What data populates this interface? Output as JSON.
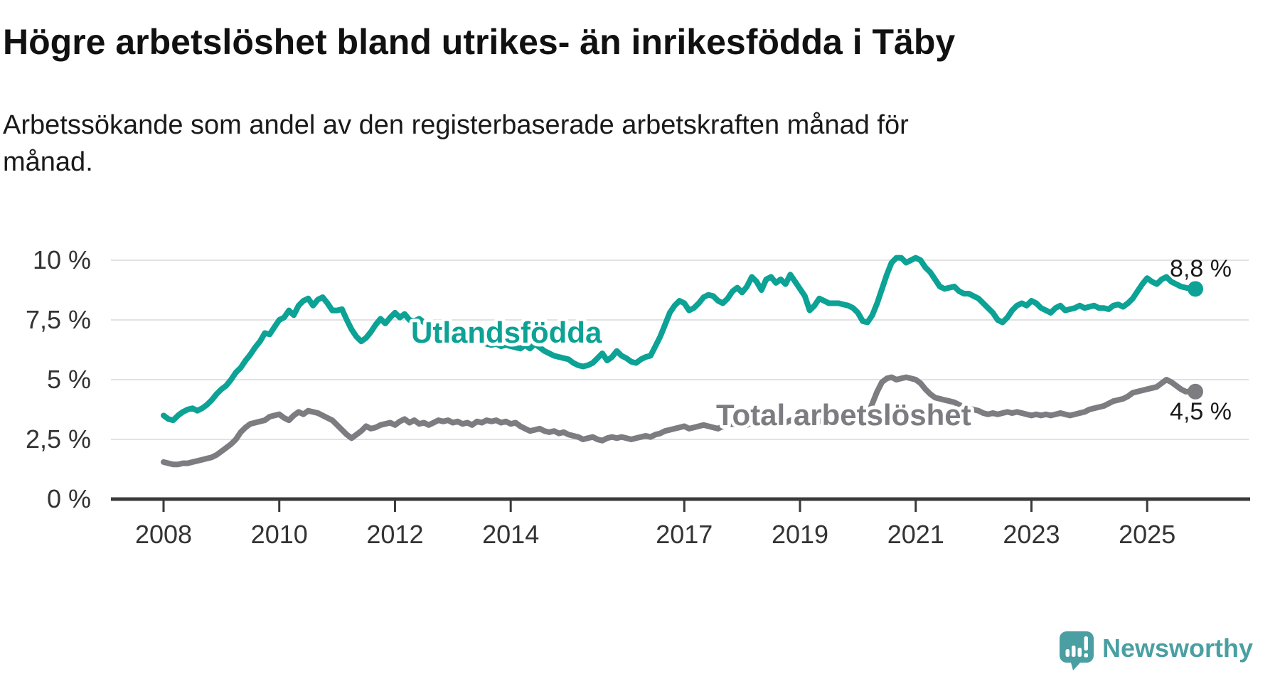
{
  "title": "Högre arbetslöshet bland utrikes- än inrikesfödda i Täby",
  "subtitle_lines": [
    "Arbetssökande som andel av den registerbaserade arbetskraften månad för",
    "månad."
  ],
  "footer": {
    "brand": "Newsworthy"
  },
  "colors": {
    "utlandsfodda": "#0ca295",
    "total": "#7c7c81",
    "gridline": "#e2e2e2",
    "axis": "#3a3a3a",
    "text": "#1a1a1a",
    "brand_teal": "#4a9fa2"
  },
  "chart_data": {
    "type": "line",
    "title": "Högre arbetslöshet bland utrikes- än inrikesfödda i Täby",
    "subtitle": "Arbetssökande som andel av den registerbaserade arbetskraften månad för månad.",
    "x_start": "2008-01",
    "x_end": "2025-11",
    "x_frequency": "monthly",
    "grid": "horizontal",
    "ylim": [
      0,
      10.6
    ],
    "y_ticks": [
      {
        "value": 0,
        "label": "0 %"
      },
      {
        "value": 2.5,
        "label": "2,5 %"
      },
      {
        "value": 5,
        "label": "5 %"
      },
      {
        "value": 7.5,
        "label": "7,5 %"
      },
      {
        "value": 10,
        "label": "10 %"
      }
    ],
    "x_ticks": [
      {
        "year": 2008,
        "label": "2008"
      },
      {
        "year": 2010,
        "label": "2010"
      },
      {
        "year": 2012,
        "label": "2012"
      },
      {
        "year": 2014,
        "label": "2014"
      },
      {
        "year": 2017,
        "label": "2017"
      },
      {
        "year": 2019,
        "label": "2019"
      },
      {
        "year": 2021,
        "label": "2021"
      },
      {
        "year": 2023,
        "label": "2023"
      },
      {
        "year": 2025,
        "label": "2025"
      }
    ],
    "series": [
      {
        "name": "Utlandsfödda",
        "color": "#0ca295",
        "end_label": "8,8 %",
        "end_value": 8.8,
        "values": [
          3.5,
          3.35,
          3.3,
          3.5,
          3.65,
          3.75,
          3.8,
          3.7,
          3.8,
          3.95,
          4.15,
          4.4,
          4.6,
          4.75,
          5.0,
          5.3,
          5.5,
          5.8,
          6.05,
          6.35,
          6.6,
          6.95,
          6.9,
          7.2,
          7.5,
          7.6,
          7.9,
          7.7,
          8.1,
          8.3,
          8.4,
          8.1,
          8.35,
          8.45,
          8.2,
          7.9,
          7.9,
          7.95,
          7.5,
          7.1,
          6.8,
          6.6,
          6.75,
          7.0,
          7.3,
          7.55,
          7.35,
          7.6,
          7.8,
          7.6,
          7.75,
          7.5,
          7.45,
          7.55,
          7.4,
          7.3,
          7.35,
          7.2,
          7.1,
          7.15,
          7.0,
          6.9,
          6.85,
          6.75,
          6.7,
          6.6,
          6.55,
          6.5,
          6.45,
          6.5,
          6.4,
          6.45,
          6.4,
          6.35,
          6.3,
          6.45,
          6.3,
          6.5,
          6.35,
          6.2,
          6.1,
          6.0,
          5.95,
          5.9,
          5.85,
          5.7,
          5.6,
          5.55,
          5.6,
          5.7,
          5.9,
          6.1,
          5.8,
          5.95,
          6.2,
          6.0,
          5.9,
          5.75,
          5.7,
          5.85,
          5.95,
          6.0,
          6.4,
          6.8,
          7.3,
          7.8,
          8.1,
          8.3,
          8.2,
          7.9,
          8.0,
          8.2,
          8.45,
          8.55,
          8.5,
          8.3,
          8.2,
          8.4,
          8.7,
          8.85,
          8.65,
          8.9,
          9.3,
          9.1,
          8.75,
          9.2,
          9.3,
          9.05,
          9.2,
          9.0,
          9.4,
          9.1,
          8.8,
          8.5,
          7.9,
          8.1,
          8.4,
          8.3,
          8.2,
          8.2,
          8.2,
          8.15,
          8.1,
          8.0,
          7.8,
          7.45,
          7.4,
          7.7,
          8.2,
          8.8,
          9.4,
          9.9,
          10.1,
          10.1,
          9.9,
          10.0,
          10.1,
          10.0,
          9.7,
          9.5,
          9.2,
          8.9,
          8.8,
          8.85,
          8.9,
          8.7,
          8.6,
          8.6,
          8.5,
          8.4,
          8.2,
          8.0,
          7.8,
          7.5,
          7.4,
          7.6,
          7.9,
          8.1,
          8.2,
          8.1,
          8.3,
          8.2,
          8.0,
          7.9,
          7.8,
          8.0,
          8.1,
          7.9,
          7.95,
          8.0,
          8.1,
          8.0,
          8.05,
          8.1,
          8.0,
          8.0,
          7.95,
          8.1,
          8.15,
          8.05,
          8.2,
          8.4,
          8.7,
          9.0,
          9.25,
          9.1,
          9.0,
          9.2,
          9.3,
          9.1,
          9.0,
          8.9,
          8.85,
          8.8,
          8.8
        ]
      },
      {
        "name": "Total arbetslöshet",
        "color": "#7c7c81",
        "end_label": "4,5 %",
        "end_value": 4.5,
        "values": [
          1.55,
          1.5,
          1.45,
          1.45,
          1.5,
          1.5,
          1.55,
          1.6,
          1.65,
          1.7,
          1.75,
          1.85,
          2.0,
          2.15,
          2.3,
          2.5,
          2.8,
          3.0,
          3.15,
          3.2,
          3.25,
          3.3,
          3.45,
          3.5,
          3.55,
          3.4,
          3.3,
          3.5,
          3.65,
          3.55,
          3.7,
          3.65,
          3.6,
          3.5,
          3.4,
          3.3,
          3.1,
          2.9,
          2.7,
          2.55,
          2.7,
          2.85,
          3.05,
          2.95,
          3.0,
          3.1,
          3.15,
          3.2,
          3.1,
          3.25,
          3.35,
          3.2,
          3.3,
          3.15,
          3.2,
          3.1,
          3.2,
          3.3,
          3.25,
          3.3,
          3.2,
          3.25,
          3.15,
          3.2,
          3.1,
          3.25,
          3.2,
          3.3,
          3.25,
          3.3,
          3.2,
          3.25,
          3.15,
          3.2,
          3.05,
          2.95,
          2.85,
          2.9,
          2.95,
          2.85,
          2.8,
          2.85,
          2.75,
          2.8,
          2.7,
          2.65,
          2.6,
          2.5,
          2.55,
          2.6,
          2.5,
          2.45,
          2.55,
          2.6,
          2.55,
          2.6,
          2.55,
          2.5,
          2.55,
          2.6,
          2.65,
          2.6,
          2.7,
          2.75,
          2.85,
          2.9,
          2.95,
          3.0,
          3.05,
          2.95,
          3.0,
          3.05,
          3.1,
          3.05,
          3.0,
          2.95,
          3.05,
          3.1,
          3.15,
          3.1,
          3.15,
          3.1,
          3.2,
          3.15,
          3.1,
          3.2,
          3.15,
          3.2,
          3.25,
          3.2,
          3.3,
          3.25,
          3.2,
          3.15,
          3.1,
          3.2,
          3.25,
          3.3,
          3.3,
          3.25,
          3.3,
          3.3,
          3.35,
          3.3,
          3.3,
          3.35,
          3.5,
          4.0,
          4.5,
          4.9,
          5.05,
          5.1,
          5.0,
          5.05,
          5.1,
          5.05,
          5.0,
          4.85,
          4.6,
          4.4,
          4.25,
          4.2,
          4.15,
          4.1,
          4.05,
          3.95,
          3.85,
          3.8,
          3.75,
          3.7,
          3.6,
          3.55,
          3.6,
          3.55,
          3.6,
          3.65,
          3.6,
          3.65,
          3.6,
          3.55,
          3.5,
          3.55,
          3.5,
          3.55,
          3.5,
          3.55,
          3.6,
          3.55,
          3.5,
          3.55,
          3.6,
          3.65,
          3.75,
          3.8,
          3.85,
          3.9,
          4.0,
          4.1,
          4.15,
          4.2,
          4.3,
          4.45,
          4.5,
          4.55,
          4.6,
          4.65,
          4.7,
          4.85,
          5.0,
          4.9,
          4.75,
          4.6,
          4.5,
          4.5,
          4.5
        ]
      }
    ]
  }
}
